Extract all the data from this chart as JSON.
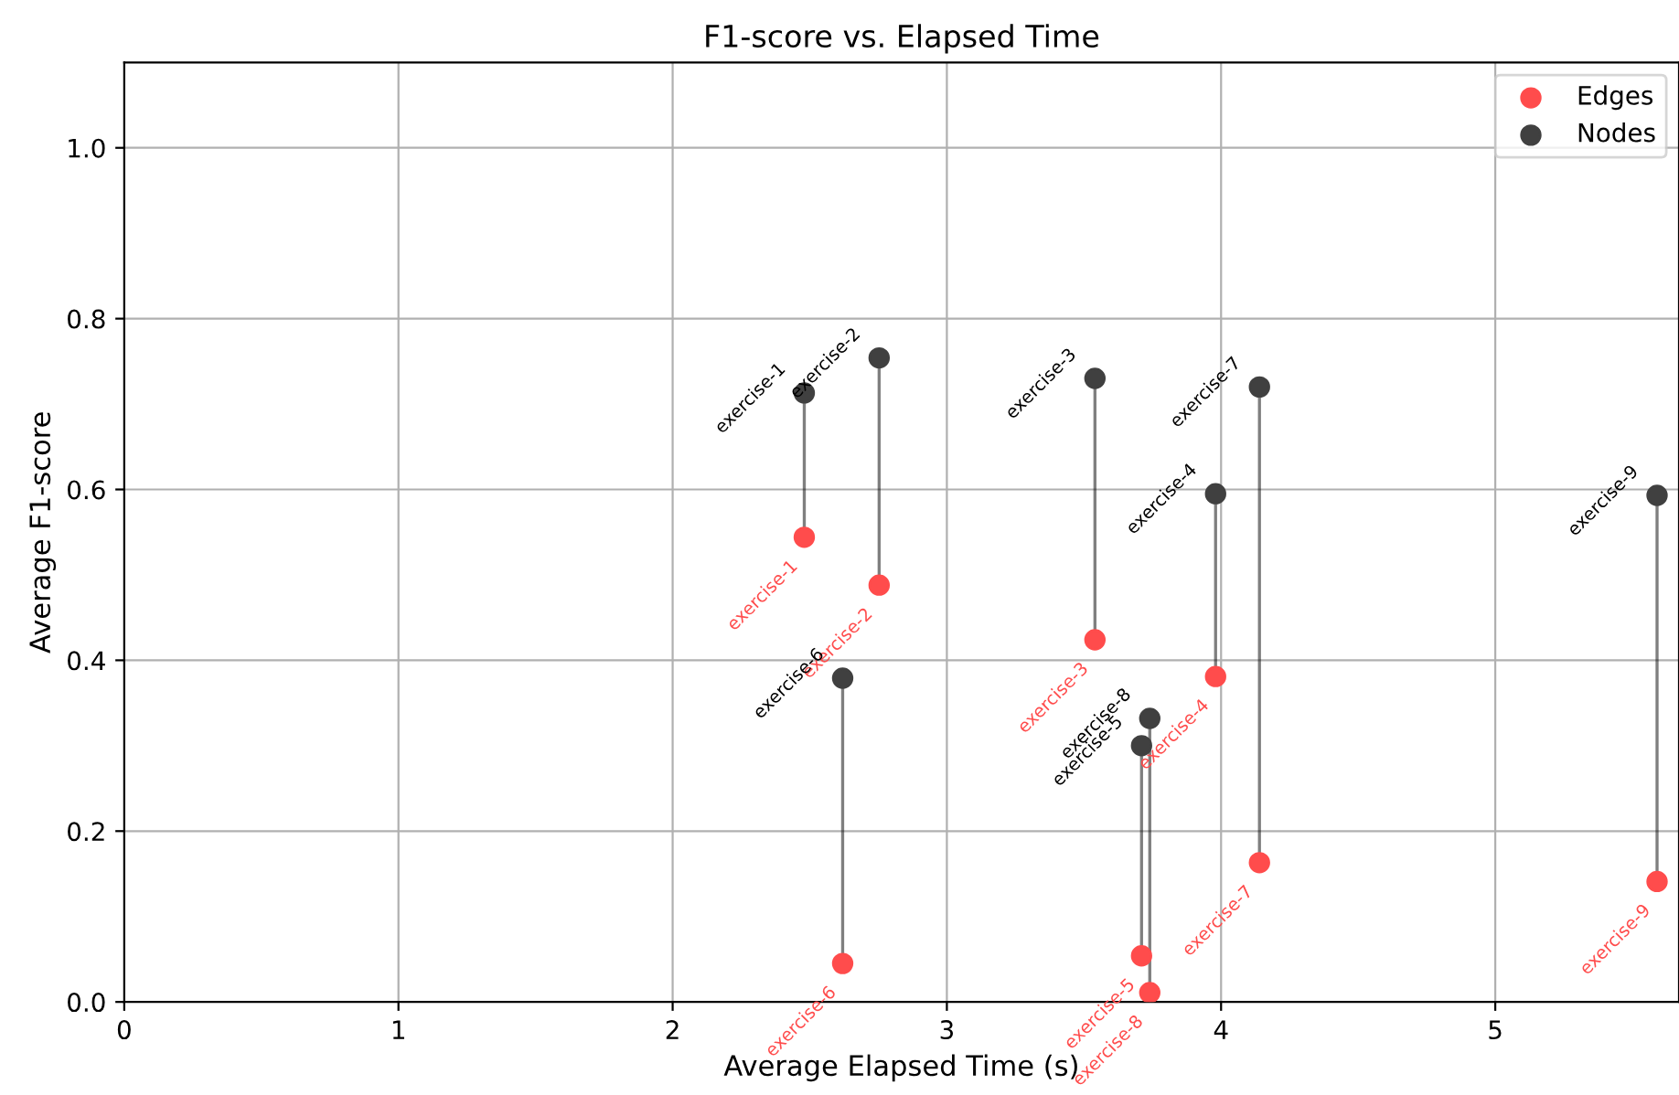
{
  "chart_data": {
    "type": "scatter",
    "title": "F1-score vs. Elapsed Time",
    "xlabel": "Average Elapsed Time (s)",
    "ylabel": "Average F1-score",
    "x": [
      2.48,
      2.753,
      3.54,
      3.98,
      3.71,
      2.62,
      4.14,
      3.74,
      5.59
    ],
    "series": [
      {
        "name": "Edges",
        "color": "#ff4c4c",
        "values": [
          0.544,
          0.488,
          0.424,
          0.381,
          0.054,
          0.045,
          0.163,
          0.011,
          0.141
        ],
        "value_labels": [
          "exercise-1",
          "exercise-2",
          "exercise-3",
          "exercise-4",
          "exercise-5",
          "exercise-6",
          "exercise-7",
          "exercise-8",
          "exercise-9"
        ]
      },
      {
        "name": "Nodes",
        "color": "#404040",
        "values": [
          0.713,
          0.754,
          0.73,
          0.595,
          0.3,
          0.379,
          0.72,
          0.332,
          0.593
        ],
        "value_labels": [
          "exercise-1",
          "exercise-2",
          "exercise-3",
          "exercise-4",
          "exercise-5",
          "exercise-6",
          "exercise-7",
          "exercise-8",
          "exercise-9"
        ]
      }
    ],
    "xlim": [
      0,
      5.67
    ],
    "ylim": [
      0,
      1.1
    ],
    "xticks": [
      0,
      1,
      2,
      3,
      4,
      5
    ],
    "yticks": [
      {
        "value": 0,
        "label": "0.0"
      },
      0.2,
      0.4,
      0.6,
      0.8,
      {
        "value": 1,
        "label": "1.0"
      }
    ],
    "grid": true,
    "legend": "top right",
    "marker": "circle"
  }
}
